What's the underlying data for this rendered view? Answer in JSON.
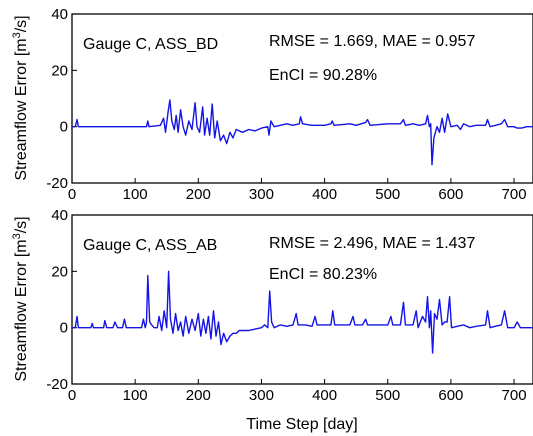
{
  "figure": {
    "xlabel": "Time Step [day]",
    "ylabel_top": "Streamflow Error [m",
    "ylabel_sup": "3",
    "ylabel_tail": "/s]",
    "line_color": "#1414e6"
  },
  "chart_data": [
    {
      "type": "line",
      "title": "",
      "annotations": {
        "gauge": "Gauge C, ASS_BD",
        "metrics": "RMSE = 1.669, MAE = 0.957",
        "encl": "EnCI = 90.28%"
      },
      "xlim": [
        0,
        730
      ],
      "ylim": [
        -20,
        40
      ],
      "xticks": [
        0,
        100,
        200,
        300,
        400,
        500,
        600,
        700
      ],
      "yticks": [
        -20,
        0,
        20,
        40
      ],
      "series": [
        {
          "values": [
            [
              0,
              0
            ],
            [
              5,
              0
            ],
            [
              8,
              2.5
            ],
            [
              10,
              0
            ],
            [
              60,
              0
            ],
            [
              118,
              0
            ],
            [
              120,
              2
            ],
            [
              122,
              0
            ],
            [
              140,
              0.5
            ],
            [
              145,
              3
            ],
            [
              148,
              -2
            ],
            [
              152,
              5
            ],
            [
              155,
              9.5
            ],
            [
              158,
              2
            ],
            [
              162,
              -1
            ],
            [
              165,
              4
            ],
            [
              168,
              -2
            ],
            [
              172,
              6
            ],
            [
              176,
              0
            ],
            [
              180,
              -3
            ],
            [
              185,
              2
            ],
            [
              190,
              -1
            ],
            [
              195,
              8.5
            ],
            [
              198,
              0
            ],
            [
              202,
              -2
            ],
            [
              207,
              7
            ],
            [
              210,
              -3
            ],
            [
              214,
              3
            ],
            [
              218,
              -3
            ],
            [
              222,
              8
            ],
            [
              226,
              -4
            ],
            [
              230,
              2
            ],
            [
              235,
              -5
            ],
            [
              240,
              -3
            ],
            [
              245,
              -6
            ],
            [
              250,
              -2
            ],
            [
              255,
              -4
            ],
            [
              260,
              -1
            ],
            [
              270,
              -2
            ],
            [
              280,
              -1
            ],
            [
              290,
              -1.5
            ],
            [
              300,
              -0.5
            ],
            [
              310,
              0
            ],
            [
              312,
              -3
            ],
            [
              315,
              2
            ],
            [
              320,
              0
            ],
            [
              330,
              0.5
            ],
            [
              340,
              1
            ],
            [
              350,
              0.5
            ],
            [
              360,
              1
            ],
            [
              362,
              3.5
            ],
            [
              365,
              1
            ],
            [
              380,
              0.5
            ],
            [
              400,
              0.5
            ],
            [
              410,
              1
            ],
            [
              412,
              2
            ],
            [
              415,
              0.5
            ],
            [
              440,
              1
            ],
            [
              450,
              0.5
            ],
            [
              465,
              1.5
            ],
            [
              468,
              2.5
            ],
            [
              472,
              0.5
            ],
            [
              500,
              1
            ],
            [
              520,
              1
            ],
            [
              525,
              2.5
            ],
            [
              528,
              0.5
            ],
            [
              540,
              1
            ],
            [
              550,
              0.5
            ],
            [
              560,
              1
            ],
            [
              563,
              4
            ],
            [
              566,
              0
            ],
            [
              568,
              1
            ],
            [
              570,
              -13.5
            ],
            [
              573,
              -4
            ],
            [
              578,
              0
            ],
            [
              582,
              -2
            ],
            [
              586,
              3
            ],
            [
              590,
              -2
            ],
            [
              595,
              4.5
            ],
            [
              600,
              0
            ],
            [
              610,
              0.5
            ],
            [
              615,
              -1
            ],
            [
              620,
              1
            ],
            [
              630,
              0
            ],
            [
              640,
              0.5
            ],
            [
              655,
              0.5
            ],
            [
              658,
              2.5
            ],
            [
              662,
              0
            ],
            [
              680,
              1
            ],
            [
              685,
              2.5
            ],
            [
              690,
              0
            ],
            [
              700,
              0
            ],
            [
              705,
              -0.5
            ],
            [
              712,
              -0.5
            ],
            [
              720,
              0
            ],
            [
              730,
              0
            ]
          ]
        }
      ]
    },
    {
      "type": "line",
      "title": "",
      "annotations": {
        "gauge": "Gauge C, ASS_AB",
        "metrics": "RMSE = 2.496, MAE = 1.437",
        "encl": "EnCI = 80.23%"
      },
      "xlim": [
        0,
        730
      ],
      "ylim": [
        -20,
        40
      ],
      "xticks": [
        0,
        100,
        200,
        300,
        400,
        500,
        600,
        700
      ],
      "yticks": [
        -20,
        0,
        20,
        40
      ],
      "series": [
        {
          "values": [
            [
              0,
              0
            ],
            [
              5,
              0
            ],
            [
              8,
              4
            ],
            [
              10,
              0
            ],
            [
              30,
              0
            ],
            [
              32,
              1.5
            ],
            [
              34,
              0
            ],
            [
              50,
              0
            ],
            [
              52,
              2.5
            ],
            [
              55,
              0
            ],
            [
              65,
              0
            ],
            [
              68,
              2
            ],
            [
              72,
              0
            ],
            [
              80,
              0
            ],
            [
              83,
              3
            ],
            [
              86,
              0
            ],
            [
              110,
              0
            ],
            [
              113,
              3
            ],
            [
              116,
              0
            ],
            [
              118,
              2
            ],
            [
              120,
              18.5
            ],
            [
              123,
              2
            ],
            [
              126,
              1
            ],
            [
              130,
              0
            ],
            [
              135,
              0
            ],
            [
              138,
              4
            ],
            [
              142,
              -1
            ],
            [
              146,
              6
            ],
            [
              150,
              0
            ],
            [
              153,
              20
            ],
            [
              156,
              3
            ],
            [
              160,
              -2
            ],
            [
              164,
              5
            ],
            [
              168,
              -1
            ],
            [
              172,
              2
            ],
            [
              176,
              -3
            ],
            [
              180,
              4
            ],
            [
              185,
              -2
            ],
            [
              190,
              3
            ],
            [
              195,
              -1
            ],
            [
              200,
              5
            ],
            [
              204,
              -3
            ],
            [
              208,
              3
            ],
            [
              212,
              -2
            ],
            [
              216,
              4
            ],
            [
              220,
              -4
            ],
            [
              224,
              6
            ],
            [
              228,
              -3
            ],
            [
              232,
              2
            ],
            [
              236,
              -6
            ],
            [
              240,
              -2
            ],
            [
              245,
              -5
            ],
            [
              250,
              -3
            ],
            [
              255,
              -2
            ],
            [
              260,
              -2
            ],
            [
              265,
              -1
            ],
            [
              270,
              -1
            ],
            [
              280,
              -1
            ],
            [
              290,
              -0.5
            ],
            [
              300,
              0
            ],
            [
              305,
              1
            ],
            [
              310,
              0
            ],
            [
              313,
              13
            ],
            [
              316,
              2
            ],
            [
              320,
              0
            ],
            [
              330,
              1
            ],
            [
              340,
              0.5
            ],
            [
              350,
              1
            ],
            [
              355,
              5
            ],
            [
              358,
              1
            ],
            [
              370,
              1
            ],
            [
              380,
              0.5
            ],
            [
              385,
              4
            ],
            [
              388,
              1
            ],
            [
              400,
              1
            ],
            [
              410,
              1
            ],
            [
              413,
              6
            ],
            [
              416,
              1
            ],
            [
              430,
              1
            ],
            [
              440,
              1
            ],
            [
              445,
              4
            ],
            [
              448,
              1
            ],
            [
              460,
              1
            ],
            [
              465,
              3
            ],
            [
              468,
              1
            ],
            [
              480,
              1
            ],
            [
              500,
              1
            ],
            [
              505,
              4
            ],
            [
              508,
              1
            ],
            [
              520,
              1
            ],
            [
              525,
              9
            ],
            [
              528,
              1
            ],
            [
              540,
              1
            ],
            [
              545,
              6
            ],
            [
              548,
              0
            ],
            [
              555,
              4
            ],
            [
              560,
              2
            ],
            [
              563,
              11
            ],
            [
              566,
              0
            ],
            [
              568,
              6
            ],
            [
              571,
              -9
            ],
            [
              574,
              5
            ],
            [
              578,
              3
            ],
            [
              582,
              10
            ],
            [
              586,
              1
            ],
            [
              590,
              2
            ],
            [
              594,
              2
            ],
            [
              598,
              11
            ],
            [
              601,
              0
            ],
            [
              610,
              0.5
            ],
            [
              620,
              1
            ],
            [
              630,
              0
            ],
            [
              640,
              0.5
            ],
            [
              655,
              1
            ],
            [
              658,
              6
            ],
            [
              662,
              0
            ],
            [
              670,
              0.5
            ],
            [
              680,
              1
            ],
            [
              685,
              6
            ],
            [
              690,
              0
            ],
            [
              700,
              0
            ],
            [
              705,
              2
            ],
            [
              710,
              0
            ],
            [
              720,
              0
            ],
            [
              730,
              0
            ]
          ]
        }
      ]
    }
  ]
}
